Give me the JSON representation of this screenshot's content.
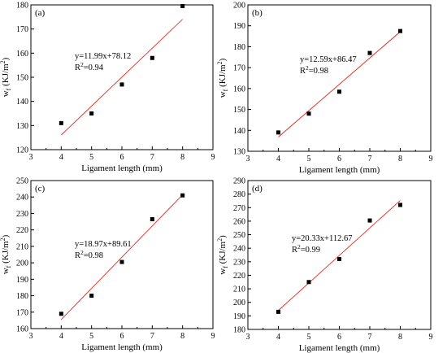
{
  "chart_data": [
    {
      "type": "scatter",
      "panel_label": "(a)",
      "xlabel": "Ligament length (mm)",
      "ylabel_main": "w",
      "ylabel_sub": "f",
      "ylabel_unit": " (KJ/m",
      "ylabel_sup": "2",
      "ylabel_close": ")",
      "xlim": [
        3,
        9
      ],
      "ylim": [
        120,
        180
      ],
      "xticks": [
        3,
        4,
        5,
        6,
        7,
        8,
        9
      ],
      "yticks": [
        120,
        130,
        140,
        150,
        160,
        170,
        180
      ],
      "x": [
        4,
        5,
        6,
        7,
        8
      ],
      "y": [
        131,
        135,
        147,
        158,
        179.5
      ],
      "fit": {
        "slope": 11.99,
        "intercept": 78.12
      },
      "equation": "y=11.99x+78.12",
      "r2_prefix": "R",
      "r2_sup": "2",
      "r2_value": "=0.94"
    },
    {
      "type": "scatter",
      "panel_label": "(b)",
      "xlabel": "Ligament length (mm)",
      "ylabel_main": "w",
      "ylabel_sub": "f",
      "ylabel_unit": " (KJ/m",
      "ylabel_sup": "2",
      "ylabel_close": ")",
      "xlim": [
        3,
        9
      ],
      "ylim": [
        130,
        200
      ],
      "xticks": [
        3,
        4,
        5,
        6,
        7,
        8,
        9
      ],
      "yticks": [
        130,
        140,
        150,
        160,
        170,
        180,
        190,
        200
      ],
      "x": [
        4,
        5,
        6,
        7,
        8
      ],
      "y": [
        139,
        148,
        158.5,
        177,
        187.5
      ],
      "fit": {
        "slope": 12.59,
        "intercept": 86.47
      },
      "equation": "y=12.59x+86.47",
      "r2_prefix": "R",
      "r2_sup": "2",
      "r2_value": "=0.98"
    },
    {
      "type": "scatter",
      "panel_label": "(c)",
      "xlabel": "Ligament length (mm)",
      "ylabel_main": "w",
      "ylabel_sub": "f",
      "ylabel_unit": " (KJ/m",
      "ylabel_sup": "2",
      "ylabel_close": ")",
      "xlim": [
        3,
        9
      ],
      "ylim": [
        160,
        250
      ],
      "xticks": [
        3,
        4,
        5,
        6,
        7,
        8,
        9
      ],
      "yticks": [
        160,
        170,
        180,
        190,
        200,
        210,
        220,
        230,
        240,
        250
      ],
      "x": [
        4,
        5,
        6,
        7,
        8
      ],
      "y": [
        169,
        180,
        200.5,
        226.5,
        241
      ],
      "fit": {
        "slope": 18.97,
        "intercept": 89.61
      },
      "equation": "y=18.97x+89.61",
      "r2_prefix": "R",
      "r2_sup": "2",
      "r2_value": "=0.98"
    },
    {
      "type": "scatter",
      "panel_label": "(d)",
      "xlabel": "Ligament length (mm)",
      "ylabel_main": "w",
      "ylabel_sub": "f",
      "ylabel_unit": " (KJ/m",
      "ylabel_sup": "2",
      "ylabel_close": ")",
      "xlim": [
        3,
        9
      ],
      "ylim": [
        180,
        290
      ],
      "xticks": [
        3,
        4,
        5,
        6,
        7,
        8,
        9
      ],
      "yticks": [
        180,
        190,
        200,
        210,
        220,
        230,
        240,
        250,
        260,
        270,
        280,
        290
      ],
      "x": [
        4,
        5,
        6,
        7,
        8
      ],
      "y": [
        193,
        215,
        232,
        260.5,
        272
      ],
      "fit": {
        "slope": 20.33,
        "intercept": 112.67
      },
      "equation": "y=20.33x+112.67",
      "r2_prefix": "R",
      "r2_sup": "2",
      "r2_value": "=0.99"
    }
  ],
  "colors": {
    "marker": "#000000",
    "fit_line": "#e8392f",
    "axis": "#000000"
  }
}
